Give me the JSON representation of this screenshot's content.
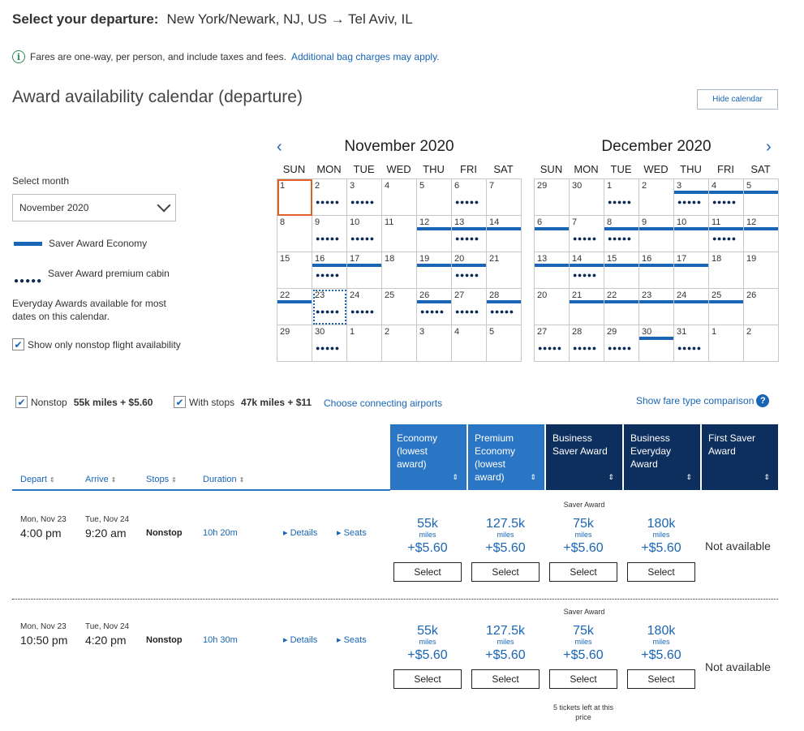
{
  "header": {
    "label": "Select your departure:",
    "route": "New York/Newark, NJ, US → Tel Aviv, IL"
  },
  "info": {
    "text": "Fares are one-way, per person, and include taxes and fees.",
    "link": "Additional bag charges may apply."
  },
  "calendar_section": {
    "title": "Award availability calendar (departure)",
    "hide_button": "Hide calendar"
  },
  "sidebar": {
    "select_month_label": "Select month",
    "selected_month": "November 2020",
    "legend_saver_economy": "Saver Award Economy",
    "legend_saver_premium": "Saver Award premium cabin",
    "legend_dots": "●●●●●",
    "everyday_note": "Everyday Awards available for most dates on this calendar.",
    "nonstop_only": "Show only nonstop flight availability",
    "nonstop_only_checked": true
  },
  "calendars": [
    {
      "title": "November 2020",
      "dow": [
        "SUN",
        "MON",
        "TUE",
        "WED",
        "THU",
        "FRI",
        "SAT"
      ],
      "cells": [
        {
          "d": "1",
          "bar": false,
          "dots": false,
          "sel": true
        },
        {
          "d": "2",
          "bar": false,
          "dots": true
        },
        {
          "d": "3",
          "bar": false,
          "dots": true
        },
        {
          "d": "4"
        },
        {
          "d": "5"
        },
        {
          "d": "6",
          "dots": true
        },
        {
          "d": "7"
        },
        {
          "d": "8"
        },
        {
          "d": "9",
          "dots": true
        },
        {
          "d": "10",
          "dots": true
        },
        {
          "d": "11"
        },
        {
          "d": "12",
          "bar": true
        },
        {
          "d": "13",
          "bar": true,
          "dots": true
        },
        {
          "d": "14",
          "bar": true
        },
        {
          "d": "15"
        },
        {
          "d": "16",
          "bar": true,
          "dots": true
        },
        {
          "d": "17",
          "bar": true
        },
        {
          "d": "18"
        },
        {
          "d": "19",
          "bar": true
        },
        {
          "d": "20",
          "bar": true,
          "dots": true
        },
        {
          "d": "21"
        },
        {
          "d": "22",
          "bar": true
        },
        {
          "d": "23",
          "dots": true,
          "dotted": true
        },
        {
          "d": "24",
          "dots": true
        },
        {
          "d": "25"
        },
        {
          "d": "26",
          "bar": true,
          "dots": true
        },
        {
          "d": "27",
          "dots": true
        },
        {
          "d": "28",
          "bar": true,
          "dots": true
        },
        {
          "d": "29"
        },
        {
          "d": "30",
          "dots": true
        },
        {
          "d": "1"
        },
        {
          "d": "2"
        },
        {
          "d": "3"
        },
        {
          "d": "4"
        },
        {
          "d": "5"
        }
      ]
    },
    {
      "title": "December 2020",
      "dow": [
        "SUN",
        "MON",
        "TUE",
        "WED",
        "THU",
        "FRI",
        "SAT"
      ],
      "cells": [
        {
          "d": "29"
        },
        {
          "d": "30"
        },
        {
          "d": "1",
          "dots": true
        },
        {
          "d": "2"
        },
        {
          "d": "3",
          "bar": true,
          "dots": true
        },
        {
          "d": "4",
          "bar": true,
          "dots": true
        },
        {
          "d": "5",
          "bar": true
        },
        {
          "d": "6",
          "bar": true
        },
        {
          "d": "7",
          "dots": true
        },
        {
          "d": "8",
          "bar": true,
          "dots": true
        },
        {
          "d": "9",
          "bar": true
        },
        {
          "d": "10",
          "bar": true
        },
        {
          "d": "11",
          "bar": true,
          "dots": true
        },
        {
          "d": "12",
          "bar": true
        },
        {
          "d": "13",
          "bar": true
        },
        {
          "d": "14",
          "bar": true,
          "dots": true
        },
        {
          "d": "15",
          "bar": true
        },
        {
          "d": "16",
          "bar": true
        },
        {
          "d": "17",
          "bar": true
        },
        {
          "d": "18"
        },
        {
          "d": "19"
        },
        {
          "d": "20"
        },
        {
          "d": "21",
          "bar": true
        },
        {
          "d": "22",
          "bar": true
        },
        {
          "d": "23",
          "bar": true
        },
        {
          "d": "24",
          "bar": true
        },
        {
          "d": "25",
          "bar": true
        },
        {
          "d": "26"
        },
        {
          "d": "27",
          "dots": true
        },
        {
          "d": "28",
          "dots": true
        },
        {
          "d": "29",
          "dots": true
        },
        {
          "d": "30",
          "bar": true
        },
        {
          "d": "31",
          "dots": true
        },
        {
          "d": "1"
        },
        {
          "d": "2"
        }
      ]
    }
  ],
  "filters": {
    "nonstop_label": "Nonstop",
    "nonstop_price": "55k miles + $5.60",
    "stops_label": "With stops",
    "stops_price": "47k miles + $11",
    "connecting_link": "Choose connecting airports",
    "compare_link": "Show fare type comparison"
  },
  "columns": {
    "depart": "Depart",
    "arrive": "Arrive",
    "stops": "Stops",
    "duration": "Duration"
  },
  "fare_headers": [
    {
      "label": "Economy (lowest award)",
      "color": "#2a76c4"
    },
    {
      "label": "Premium Economy (lowest award)",
      "color": "#2a76c4"
    },
    {
      "label": "Business Saver Award",
      "color": "#0c2f5e"
    },
    {
      "label": "Business Everyday Award",
      "color": "#0c2f5e"
    },
    {
      "label": "First Saver Award",
      "color": "#0c2f5e"
    }
  ],
  "flights": [
    {
      "depart_date": "Mon, Nov 23",
      "depart_time": "4:00 pm",
      "arrive_date": "Tue, Nov 24",
      "arrive_time": "9:20 am",
      "stops": "Nonstop",
      "duration": "10h 20m",
      "details": "Details",
      "seats": "Seats",
      "saver_label": "Saver Award",
      "fares": [
        {
          "miles": "55k",
          "unit": "miles",
          "tax": "+$5.60",
          "btn": "Select"
        },
        {
          "miles": "127.5k",
          "unit": "miles",
          "tax": "+$5.60",
          "btn": "Select"
        },
        {
          "miles": "75k",
          "unit": "miles",
          "tax": "+$5.60",
          "btn": "Select"
        },
        {
          "miles": "180k",
          "unit": "miles",
          "tax": "+$5.60",
          "btn": "Select"
        }
      ],
      "first": "Not available"
    },
    {
      "depart_date": "Mon, Nov 23",
      "depart_time": "10:50 pm",
      "arrive_date": "Tue, Nov 24",
      "arrive_time": "4:20 pm",
      "stops": "Nonstop",
      "duration": "10h 30m",
      "details": "Details",
      "seats": "Seats",
      "saver_label": "Saver Award",
      "fares": [
        {
          "miles": "55k",
          "unit": "miles",
          "tax": "+$5.60",
          "btn": "Select"
        },
        {
          "miles": "127.5k",
          "unit": "miles",
          "tax": "+$5.60",
          "btn": "Select"
        },
        {
          "miles": "75k",
          "unit": "miles",
          "tax": "+$5.60",
          "btn": "Select"
        },
        {
          "miles": "180k",
          "unit": "miles",
          "tax": "+$5.60",
          "btn": "Select"
        }
      ],
      "first": "Not available",
      "note": "5 tickets left at this price"
    }
  ]
}
